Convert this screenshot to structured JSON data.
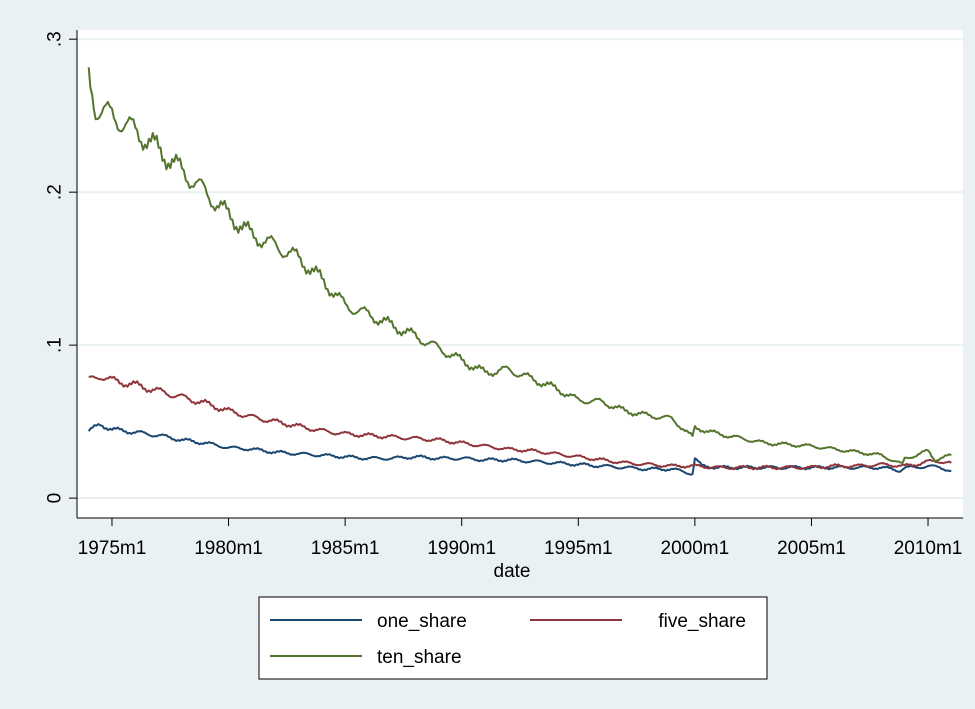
{
  "chart_data": {
    "type": "line",
    "xlabel": "date",
    "ylabel": "",
    "x_ticks": [
      {
        "value": 1975,
        "label": "1975m1"
      },
      {
        "value": 1980,
        "label": "1980m1"
      },
      {
        "value": 1985,
        "label": "1985m1"
      },
      {
        "value": 1990,
        "label": "1990m1"
      },
      {
        "value": 1995,
        "label": "1995m1"
      },
      {
        "value": 2000,
        "label": "2000m1"
      },
      {
        "value": 2005,
        "label": "2005m1"
      },
      {
        "value": 2010,
        "label": "2010m1"
      }
    ],
    "y_ticks": [
      {
        "value": 0,
        "label": "0"
      },
      {
        "value": 0.1,
        "label": ".1"
      },
      {
        "value": 0.2,
        "label": ".2"
      },
      {
        "value": 0.3,
        "label": ".3"
      }
    ],
    "xlim": [
      1973.5,
      2011.5
    ],
    "ylim": [
      -0.013,
      0.306
    ],
    "grid": true,
    "legend_position": "bottom",
    "series": [
      {
        "name": "one_share",
        "color": "#1a476f",
        "points": [
          [
            1974.0,
            0.044
          ],
          [
            1974.5,
            0.048
          ],
          [
            1975.0,
            0.045
          ],
          [
            1976.0,
            0.043
          ],
          [
            1977.0,
            0.041
          ],
          [
            1978.0,
            0.038
          ],
          [
            1979.0,
            0.036
          ],
          [
            1980.0,
            0.033
          ],
          [
            1981.0,
            0.032
          ],
          [
            1982.0,
            0.03
          ],
          [
            1983.0,
            0.029
          ],
          [
            1984.0,
            0.028
          ],
          [
            1985.0,
            0.027
          ],
          [
            1986.0,
            0.026
          ],
          [
            1987.0,
            0.026
          ],
          [
            1988.0,
            0.027
          ],
          [
            1989.0,
            0.026
          ],
          [
            1990.0,
            0.026
          ],
          [
            1991.0,
            0.025
          ],
          [
            1992.0,
            0.025
          ],
          [
            1993.0,
            0.024
          ],
          [
            1994.0,
            0.023
          ],
          [
            1995.0,
            0.022
          ],
          [
            1996.0,
            0.021
          ],
          [
            1997.0,
            0.02
          ],
          [
            1998.0,
            0.019
          ],
          [
            1999.0,
            0.019
          ],
          [
            1999.9,
            0.016
          ],
          [
            2000.0,
            0.026
          ],
          [
            2000.3,
            0.021
          ],
          [
            2001.0,
            0.02
          ],
          [
            2002.0,
            0.02
          ],
          [
            2003.0,
            0.02
          ],
          [
            2004.0,
            0.02
          ],
          [
            2005.0,
            0.02
          ],
          [
            2006.0,
            0.02
          ],
          [
            2007.0,
            0.02
          ],
          [
            2008.0,
            0.02
          ],
          [
            2008.8,
            0.018
          ],
          [
            2009.0,
            0.02
          ],
          [
            2009.5,
            0.02
          ],
          [
            2010.0,
            0.021
          ],
          [
            2010.5,
            0.02
          ],
          [
            2011.0,
            0.018
          ]
        ]
      },
      {
        "name": "five_share",
        "color": "#90353b",
        "points": [
          [
            1974.0,
            0.077
          ],
          [
            1974.5,
            0.08
          ],
          [
            1975.0,
            0.077
          ],
          [
            1976.0,
            0.074
          ],
          [
            1977.0,
            0.07
          ],
          [
            1978.0,
            0.066
          ],
          [
            1979.0,
            0.062
          ],
          [
            1980.0,
            0.057
          ],
          [
            1981.0,
            0.053
          ],
          [
            1982.0,
            0.05
          ],
          [
            1983.0,
            0.047
          ],
          [
            1984.0,
            0.044
          ],
          [
            1985.0,
            0.042
          ],
          [
            1986.0,
            0.041
          ],
          [
            1987.0,
            0.04
          ],
          [
            1988.0,
            0.039
          ],
          [
            1989.0,
            0.038
          ],
          [
            1990.0,
            0.036
          ],
          [
            1991.0,
            0.034
          ],
          [
            1992.0,
            0.032
          ],
          [
            1993.0,
            0.031
          ],
          [
            1994.0,
            0.029
          ],
          [
            1995.0,
            0.027
          ],
          [
            1996.0,
            0.025
          ],
          [
            1997.0,
            0.023
          ],
          [
            1998.0,
            0.022
          ],
          [
            1999.0,
            0.021
          ],
          [
            2000.0,
            0.021
          ],
          [
            2001.0,
            0.02
          ],
          [
            2002.0,
            0.02
          ],
          [
            2003.0,
            0.02
          ],
          [
            2004.0,
            0.02
          ],
          [
            2005.0,
            0.02
          ],
          [
            2006.0,
            0.021
          ],
          [
            2007.0,
            0.021
          ],
          [
            2008.0,
            0.022
          ],
          [
            2009.0,
            0.021
          ],
          [
            2009.5,
            0.022
          ],
          [
            2010.0,
            0.024
          ],
          [
            2010.5,
            0.024
          ],
          [
            2011.0,
            0.023
          ]
        ]
      },
      {
        "name": "ten_share",
        "color": "#55752f",
        "points": [
          [
            1974.0,
            0.275
          ],
          [
            1974.3,
            0.255
          ],
          [
            1975.0,
            0.25
          ],
          [
            1976.0,
            0.24
          ],
          [
            1977.0,
            0.228
          ],
          [
            1978.0,
            0.214
          ],
          [
            1979.0,
            0.2
          ],
          [
            1980.0,
            0.185
          ],
          [
            1981.0,
            0.172
          ],
          [
            1982.0,
            0.165
          ],
          [
            1983.0,
            0.157
          ],
          [
            1984.0,
            0.143
          ],
          [
            1985.0,
            0.126
          ],
          [
            1986.0,
            0.12
          ],
          [
            1987.0,
            0.113
          ],
          [
            1988.0,
            0.106
          ],
          [
            1989.0,
            0.098
          ],
          [
            1990.0,
            0.09
          ],
          [
            1991.0,
            0.082
          ],
          [
            1992.0,
            0.084
          ],
          [
            1993.0,
            0.078
          ],
          [
            1994.0,
            0.072
          ],
          [
            1995.0,
            0.064
          ],
          [
            1996.0,
            0.063
          ],
          [
            1997.0,
            0.057
          ],
          [
            1998.0,
            0.054
          ],
          [
            1999.0,
            0.052
          ],
          [
            1999.9,
            0.04
          ],
          [
            2000.0,
            0.046
          ],
          [
            2001.0,
            0.042
          ],
          [
            2002.0,
            0.039
          ],
          [
            2003.0,
            0.036
          ],
          [
            2004.0,
            0.035
          ],
          [
            2005.0,
            0.034
          ],
          [
            2006.0,
            0.032
          ],
          [
            2007.0,
            0.03
          ],
          [
            2008.0,
            0.028
          ],
          [
            2008.9,
            0.022
          ],
          [
            2009.0,
            0.026
          ],
          [
            2009.5,
            0.028
          ],
          [
            2010.0,
            0.031
          ],
          [
            2010.3,
            0.025
          ],
          [
            2011.0,
            0.028
          ]
        ]
      }
    ]
  }
}
